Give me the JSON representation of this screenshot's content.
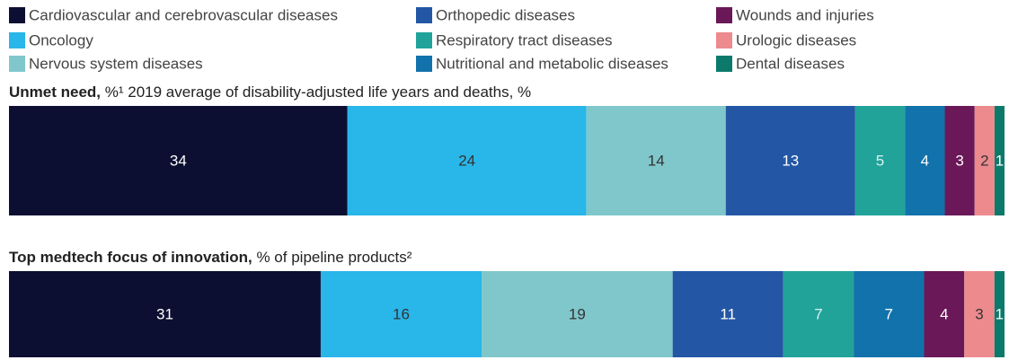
{
  "chart_data": [
    {
      "type": "bar",
      "orientation": "horizontal",
      "stacked": true,
      "title": "Unmet need,",
      "subtitle": "%¹ 2019 average of disability-adjusted life years and deaths, %",
      "xlim": [
        0,
        100
      ],
      "series": [
        {
          "name": "Cardiovascular and cerebrovascular diseases",
          "color": "#0c0f31",
          "label_color": "#ffffff",
          "values": [
            34
          ]
        },
        {
          "name": "Oncology",
          "color": "#29b6e9",
          "label_color": "#333333",
          "values": [
            24
          ]
        },
        {
          "name": "Nervous system diseases",
          "color": "#80c7cb",
          "label_color": "#333333",
          "values": [
            14
          ]
        },
        {
          "name": "Orthopedic diseases",
          "color": "#2357a5",
          "label_color": "#ffffff",
          "values": [
            13
          ]
        },
        {
          "name": "Respiratory tract diseases",
          "color": "#22a39a",
          "label_color": "#d8f0ee",
          "values": [
            5
          ]
        },
        {
          "name": "Nutritional and metabolic diseases",
          "color": "#1272ab",
          "label_color": "#ffffff",
          "values": [
            4
          ]
        },
        {
          "name": "Wounds and injuries",
          "color": "#6a1858",
          "label_color": "#ffffff",
          "values": [
            3
          ]
        },
        {
          "name": "Urologic diseases",
          "color": "#ec8a8e",
          "label_color": "#333333",
          "values": [
            2
          ]
        },
        {
          "name": "Dental diseases",
          "color": "#0c7a6a",
          "label_color": "#ffffff",
          "values": [
            1
          ]
        }
      ]
    },
    {
      "type": "bar",
      "orientation": "horizontal",
      "stacked": true,
      "title": "Top medtech focus of innovation,",
      "subtitle": " % of pipeline products²",
      "xlim": [
        0,
        99
      ],
      "series": [
        {
          "color": "#0c0f31",
          "label_color": "#ffffff",
          "values": [
            31
          ]
        },
        {
          "color": "#29b6e9",
          "label_color": "#333333",
          "values": [
            16
          ]
        },
        {
          "color": "#80c7cb",
          "label_color": "#333333",
          "values": [
            19
          ]
        },
        {
          "color": "#2357a5",
          "label_color": "#ffffff",
          "values": [
            11
          ]
        },
        {
          "color": "#22a39a",
          "label_color": "#d8f0ee",
          "values": [
            7
          ]
        },
        {
          "color": "#1272ab",
          "label_color": "#ffffff",
          "values": [
            7
          ]
        },
        {
          "color": "#6a1858",
          "label_color": "#ffffff",
          "values": [
            4
          ]
        },
        {
          "color": "#ec8a8e",
          "label_color": "#333333",
          "values": [
            3
          ]
        },
        {
          "color": "#0c7a6a",
          "label_color": "#ffffff",
          "values": [
            1
          ]
        }
      ]
    }
  ]
}
